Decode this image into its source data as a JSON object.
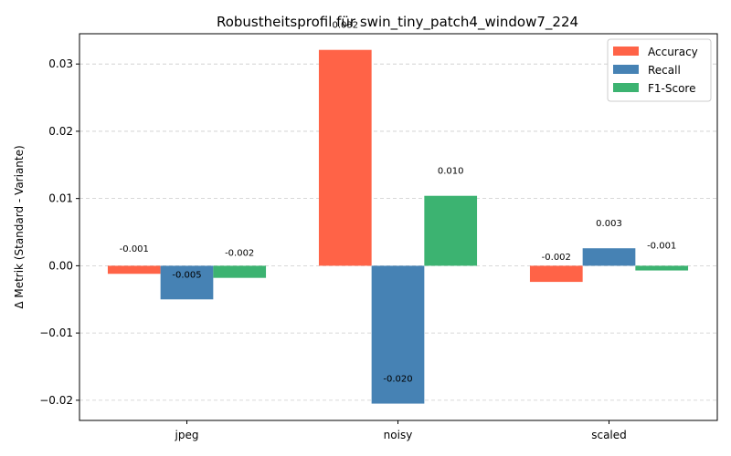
{
  "chart_data": {
    "type": "bar",
    "title": "Robustheitsprofil für swin_tiny_patch4_window7_224",
    "xlabel": "",
    "ylabel": "Δ Metrik (Standard - Variante)",
    "categories": [
      "jpeg",
      "noisy",
      "scaled"
    ],
    "series": [
      {
        "name": "Accuracy",
        "color": "#ff6347",
        "values": [
          -0.0012,
          0.0321,
          -0.0024
        ],
        "labels": [
          "-0.001",
          "0.032",
          "-0.002"
        ]
      },
      {
        "name": "Recall",
        "color": "#4682b4",
        "values": [
          -0.005,
          -0.0205,
          0.0026
        ],
        "labels": [
          "-0.005",
          "-0.020",
          "0.003"
        ]
      },
      {
        "name": "F1-Score",
        "color": "#3cb371",
        "values": [
          -0.0018,
          0.0104,
          -0.0007
        ],
        "labels": [
          "-0.002",
          "0.010",
          "-0.001"
        ]
      }
    ],
    "ylim": [
      -0.023,
      0.0345
    ],
    "yticks": [
      -0.02,
      -0.01,
      0.0,
      0.01,
      0.02,
      0.03
    ],
    "ytick_labels": [
      "−0.02",
      "−0.01",
      "0.00",
      "0.01",
      "0.02",
      "0.03"
    ],
    "grid": "y-dashed",
    "legend_position": "top-right"
  }
}
